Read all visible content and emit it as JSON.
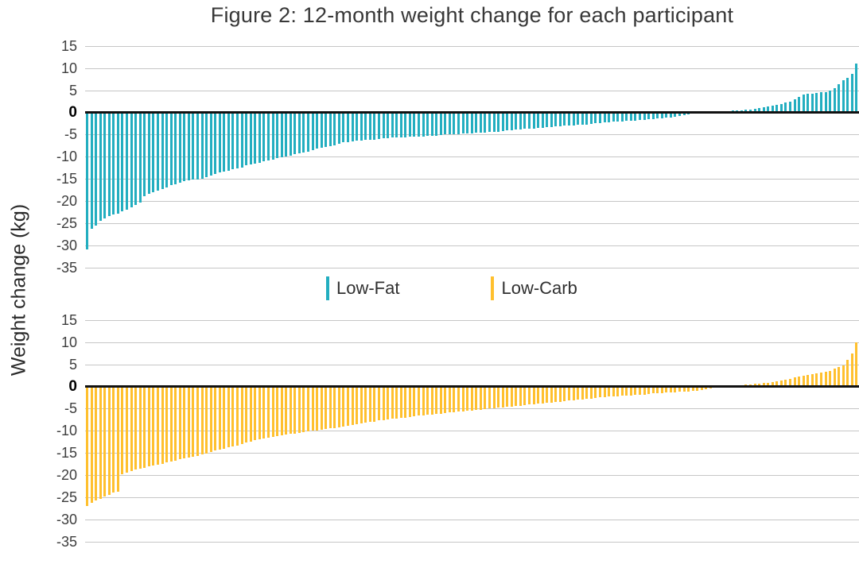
{
  "figure": {
    "title": "Figure 2: 12-month weight change for each participant",
    "y_axis_label": "Weight change (kg)"
  },
  "legend": {
    "items": [
      {
        "label": "Low-Fat",
        "color": "#23aec0"
      },
      {
        "label": "Low-Carb",
        "color": "#ffc02e"
      }
    ]
  },
  "colors": {
    "low_fat": "#23aec0",
    "low_carb": "#ffc02e",
    "gridline": "#c6c6c6",
    "zero_line": "#111111",
    "tick_text": "#3d3d3d"
  },
  "chart_data": [
    {
      "type": "bar",
      "panel": "low-fat",
      "series_name": "Low-Fat",
      "color": "#23aec0",
      "xlabel": "",
      "ylabel": "Weight change (kg)",
      "ylim": [
        -35,
        15
      ],
      "yticks": [
        15,
        10,
        5,
        0,
        -5,
        -10,
        -15,
        -20,
        -25,
        -30,
        -35
      ],
      "grid": true,
      "legend_position": "below",
      "values": [
        -31,
        -26.2,
        -25.6,
        -24.5,
        -23.9,
        -23.4,
        -23.1,
        -22.8,
        -22.3,
        -21.9,
        -21.4,
        -20.9,
        -20.4,
        -18.9,
        -18.3,
        -18,
        -17.7,
        -17.3,
        -16.9,
        -16.5,
        -16.2,
        -15.8,
        -15.6,
        -15.4,
        -15.2,
        -15.1,
        -14.9,
        -14.6,
        -14.2,
        -13.9,
        -13.6,
        -13.3,
        -13.1,
        -12.9,
        -12.7,
        -12.4,
        -12,
        -11.8,
        -11.5,
        -11.3,
        -11.1,
        -10.9,
        -10.6,
        -10.3,
        -10.1,
        -9.9,
        -9.7,
        -9.5,
        -9.3,
        -9.1,
        -8.8,
        -8.5,
        -8.2,
        -8,
        -7.8,
        -7.6,
        -7.4,
        -7.1,
        -6.8,
        -6.7,
        -6.5,
        -6.4,
        -6.3,
        -6.2,
        -6.2,
        -6.1,
        -6,
        -5.9,
        -5.8,
        -5.7,
        -5.7,
        -5.6,
        -5.6,
        -5.5,
        -5.5,
        -5.4,
        -5.4,
        -5.3,
        -5.2,
        -5.2,
        -5.1,
        -5,
        -5,
        -4.9,
        -4.9,
        -4.8,
        -4.7,
        -4.7,
        -4.6,
        -4.5,
        -4.5,
        -4.4,
        -4.3,
        -4.3,
        -4.2,
        -4.1,
        -4,
        -3.9,
        -3.8,
        -3.7,
        -3.6,
        -3.6,
        -3.5,
        -3.4,
        -3.3,
        -3.3,
        -3.2,
        -3.1,
        -3,
        -3,
        -2.9,
        -2.8,
        -2.7,
        -2.7,
        -2.6,
        -2.5,
        -2.4,
        -2.3,
        -2.2,
        -2.1,
        -2.1,
        -2,
        -1.9,
        -1.9,
        -1.8,
        -1.7,
        -1.7,
        -1.6,
        -1.5,
        -1.4,
        -1.3,
        -1.2,
        -1.1,
        -1,
        -0.8,
        -0.6,
        -0.4,
        -0.3,
        0,
        0,
        0,
        0,
        0,
        0,
        0.2,
        0.3,
        0.4,
        0.5,
        0.5,
        0.6,
        0.7,
        0.8,
        1,
        1.1,
        1.3,
        1.5,
        1.7,
        1.9,
        2.2,
        2.5,
        3,
        3.6,
        4,
        4.2,
        4.3,
        4.4,
        4.5,
        4.6,
        4.9,
        5.5,
        6.3,
        7.2,
        7.9,
        8.8,
        11
      ]
    },
    {
      "type": "bar",
      "panel": "low-carb",
      "series_name": "Low-Carb",
      "color": "#ffc02e",
      "xlabel": "",
      "ylabel": "Weight change (kg)",
      "ylim": [
        -35,
        15
      ],
      "yticks": [
        15,
        10,
        5,
        0,
        -5,
        -10,
        -15,
        -20,
        -25,
        -30,
        -35
      ],
      "grid": true,
      "legend_position": "above",
      "values": [
        -27,
        -26.3,
        -25.8,
        -25.3,
        -24.8,
        -24.4,
        -24,
        -23.7,
        -19.8,
        -19.5,
        -19.1,
        -18.8,
        -18.6,
        -18.3,
        -18,
        -17.8,
        -17.6,
        -17.4,
        -17.1,
        -16.9,
        -16.7,
        -16.5,
        -16.3,
        -16.1,
        -15.9,
        -15.7,
        -15.4,
        -15.1,
        -14.8,
        -14.5,
        -14.3,
        -14,
        -13.8,
        -13.5,
        -13.3,
        -13,
        -12.7,
        -12.4,
        -12.1,
        -11.9,
        -11.7,
        -11.5,
        -11.3,
        -11.2,
        -11,
        -10.9,
        -10.7,
        -10.6,
        -10.4,
        -10.3,
        -10.1,
        -10,
        -9.9,
        -9.8,
        -9.6,
        -9.5,
        -9.4,
        -9.2,
        -9.1,
        -8.9,
        -8.7,
        -8.5,
        -8.4,
        -8.2,
        -8,
        -7.9,
        -7.7,
        -7.6,
        -7.5,
        -7.3,
        -7.2,
        -7.1,
        -7,
        -6.9,
        -6.7,
        -6.6,
        -6.5,
        -6.4,
        -6.3,
        -6.2,
        -6.1,
        -6,
        -5.9,
        -5.8,
        -5.7,
        -5.6,
        -5.5,
        -5.4,
        -5.3,
        -5.2,
        -5.1,
        -5,
        -4.9,
        -4.8,
        -4.7,
        -4.6,
        -4.5,
        -4.4,
        -4.3,
        -4.2,
        -4.1,
        -4,
        -3.9,
        -3.8,
        -3.7,
        -3.6,
        -3.5,
        -3.4,
        -3.3,
        -3.2,
        -3.1,
        -3,
        -2.9,
        -2.8,
        -2.7,
        -2.6,
        -2.5,
        -2.4,
        -2.3,
        -2.2,
        -2.2,
        -2.1,
        -2,
        -2,
        -1.9,
        -1.8,
        -1.8,
        -1.7,
        -1.6,
        -1.6,
        -1.5,
        -1.4,
        -1.4,
        -1.3,
        -1.2,
        -1.2,
        -1.1,
        -1,
        -0.9,
        -0.8,
        -0.7,
        -0.5,
        -0.3,
        0,
        0,
        0,
        0,
        0.2,
        0.3,
        0.4,
        0.5,
        0.6,
        0.7,
        0.8,
        0.9,
        1,
        1.2,
        1.4,
        1.6,
        1.8,
        2,
        2.2,
        2.4,
        2.6,
        2.8,
        3,
        3.2,
        3.4,
        3.6,
        4,
        4.4,
        4.8,
        6,
        7.5,
        10
      ]
    }
  ]
}
